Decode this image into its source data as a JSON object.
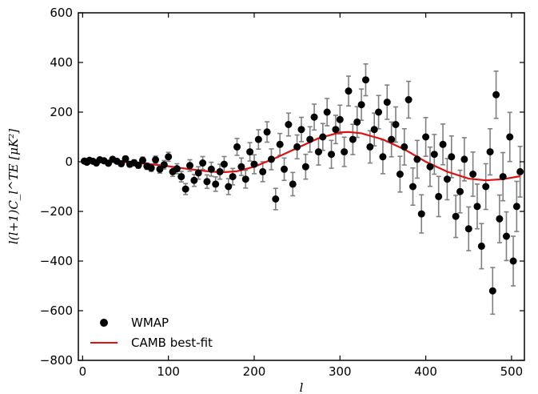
{
  "chart_data": {
    "type": "scatter",
    "xlabel": "l",
    "ylabel": "l(l+1)C_l^TE [μK²]",
    "xlim": [
      -5,
      515
    ],
    "ylim": [
      -800,
      600
    ],
    "xticks": [
      0,
      100,
      200,
      300,
      400,
      500
    ],
    "yticks": [
      -800,
      -600,
      -400,
      -200,
      0,
      200,
      400,
      600
    ],
    "xtick_labels": [
      "0",
      "100",
      "200",
      "300",
      "400",
      "500"
    ],
    "ytick_labels": [
      "−800",
      "−600",
      "−400",
      "−200",
      "0",
      "200",
      "400",
      "600"
    ],
    "legend_position": "lower-left",
    "colors": {
      "points": "#000000",
      "errorbars": "#808080",
      "model": "#dd1111"
    },
    "series": [
      {
        "name": "WMAP",
        "style": "points-with-errorbars",
        "points": [
          [
            2,
            3,
            5
          ],
          [
            5,
            -2,
            5
          ],
          [
            8,
            6,
            6
          ],
          [
            12,
            2,
            6
          ],
          [
            16,
            -5,
            7
          ],
          [
            20,
            8,
            7
          ],
          [
            25,
            4,
            8
          ],
          [
            30,
            -6,
            8
          ],
          [
            35,
            10,
            9
          ],
          [
            40,
            2,
            9
          ],
          [
            45,
            -8,
            10
          ],
          [
            50,
            12,
            10
          ],
          [
            55,
            -10,
            11
          ],
          [
            60,
            -4,
            12
          ],
          [
            65,
            -14,
            12
          ],
          [
            70,
            6,
            13
          ],
          [
            75,
            -18,
            13
          ],
          [
            80,
            -25,
            14
          ],
          [
            85,
            8,
            15
          ],
          [
            90,
            -30,
            16
          ],
          [
            95,
            -12,
            17
          ],
          [
            100,
            20,
            18
          ],
          [
            105,
            -40,
            19
          ],
          [
            110,
            -28,
            20
          ],
          [
            115,
            -60,
            21
          ],
          [
            120,
            -110,
            22
          ],
          [
            125,
            -15,
            23
          ],
          [
            130,
            -75,
            24
          ],
          [
            135,
            -45,
            25
          ],
          [
            140,
            -5,
            26
          ],
          [
            145,
            -80,
            27
          ],
          [
            150,
            -30,
            28
          ],
          [
            155,
            -90,
            29
          ],
          [
            160,
            -40,
            30
          ],
          [
            165,
            -10,
            31
          ],
          [
            170,
            -100,
            32
          ],
          [
            175,
            -60,
            33
          ],
          [
            180,
            60,
            34
          ],
          [
            185,
            -20,
            35
          ],
          [
            190,
            -70,
            36
          ],
          [
            195,
            40,
            37
          ],
          [
            200,
            -10,
            38
          ],
          [
            205,
            90,
            39
          ],
          [
            210,
            -40,
            40
          ],
          [
            215,
            120,
            41
          ],
          [
            220,
            10,
            42
          ],
          [
            225,
            -150,
            43
          ],
          [
            230,
            70,
            44
          ],
          [
            235,
            -30,
            45
          ],
          [
            240,
            150,
            46
          ],
          [
            245,
            -90,
            47
          ],
          [
            250,
            60,
            48
          ],
          [
            255,
            130,
            49
          ],
          [
            260,
            -20,
            50
          ],
          [
            265,
            90,
            51
          ],
          [
            270,
            180,
            52
          ],
          [
            275,
            40,
            53
          ],
          [
            280,
            100,
            54
          ],
          [
            285,
            200,
            55
          ],
          [
            290,
            30,
            56
          ],
          [
            295,
            130,
            57
          ],
          [
            300,
            170,
            58
          ],
          [
            305,
            40,
            59
          ],
          [
            310,
            285,
            60
          ],
          [
            315,
            90,
            61
          ],
          [
            320,
            160,
            62
          ],
          [
            325,
            230,
            63
          ],
          [
            330,
            330,
            64
          ],
          [
            335,
            60,
            65
          ],
          [
            340,
            130,
            66
          ],
          [
            345,
            200,
            67
          ],
          [
            350,
            20,
            68
          ],
          [
            355,
            240,
            69
          ],
          [
            360,
            90,
            70
          ],
          [
            365,
            150,
            71
          ],
          [
            370,
            -50,
            72
          ],
          [
            375,
            60,
            73
          ],
          [
            380,
            250,
            74
          ],
          [
            385,
            -100,
            75
          ],
          [
            390,
            10,
            76
          ],
          [
            395,
            -210,
            77
          ],
          [
            400,
            100,
            78
          ],
          [
            405,
            -20,
            79
          ],
          [
            410,
            30,
            80
          ],
          [
            415,
            -140,
            81
          ],
          [
            420,
            70,
            82
          ],
          [
            425,
            -70,
            83
          ],
          [
            430,
            20,
            84
          ],
          [
            435,
            -220,
            85
          ],
          [
            440,
            -120,
            86
          ],
          [
            445,
            10,
            87
          ],
          [
            450,
            -270,
            88
          ],
          [
            455,
            -50,
            89
          ],
          [
            460,
            -180,
            90
          ],
          [
            465,
            -340,
            91
          ],
          [
            470,
            -100,
            92
          ],
          [
            475,
            40,
            93
          ],
          [
            478,
            -520,
            94
          ],
          [
            482,
            270,
            95
          ],
          [
            486,
            -230,
            96
          ],
          [
            490,
            -60,
            97
          ],
          [
            494,
            -300,
            98
          ],
          [
            498,
            100,
            99
          ],
          [
            502,
            -400,
            100
          ],
          [
            506,
            -180,
            101
          ],
          [
            510,
            -40,
            102
          ]
        ]
      },
      {
        "name": "CAMB best-fit",
        "style": "line",
        "x": [
          0,
          25,
          50,
          75,
          100,
          125,
          150,
          165,
          180,
          200,
          225,
          250,
          275,
          300,
          310,
          325,
          350,
          375,
          400,
          425,
          450,
          470,
          490,
          510
        ],
        "y": [
          0,
          0,
          -2,
          -8,
          -18,
          -30,
          -40,
          -42,
          -38,
          -20,
          15,
          55,
          95,
          118,
          120,
          115,
          90,
          50,
          0,
          -40,
          -68,
          -75,
          -70,
          -58
        ]
      }
    ]
  }
}
